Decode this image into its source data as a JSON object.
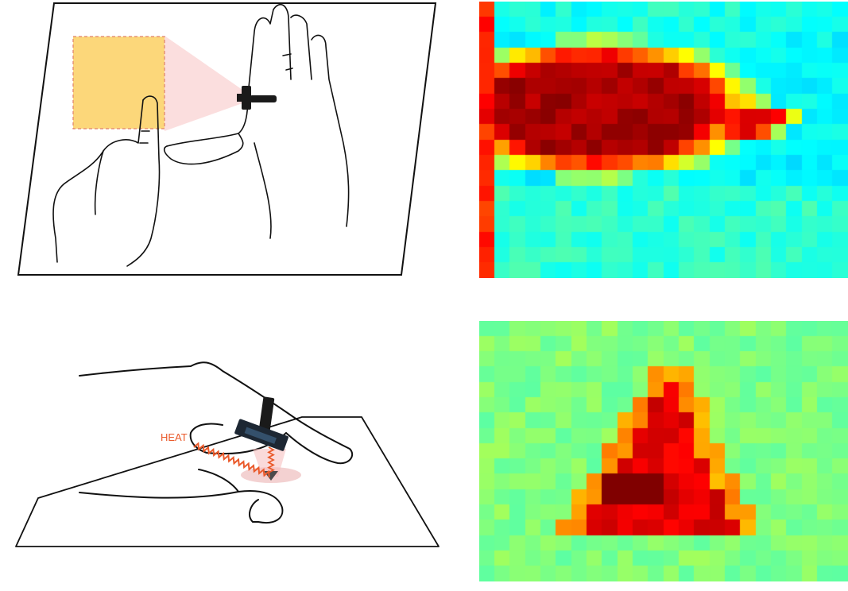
{
  "heat_label": "HEAT",
  "colors": {
    "ink": "#111111",
    "highlight_fill": "#fcd77a",
    "highlight_border": "#e0806a",
    "cone": "#f7c7c7",
    "heat": "#ea5a2b",
    "sensor": "#1a1a1a"
  },
  "thermal_top": {
    "cols": 24,
    "rows": 18,
    "palette": "jet"
  },
  "thermal_bottom": {
    "cols": 24,
    "rows": 17,
    "palette": "jet"
  }
}
